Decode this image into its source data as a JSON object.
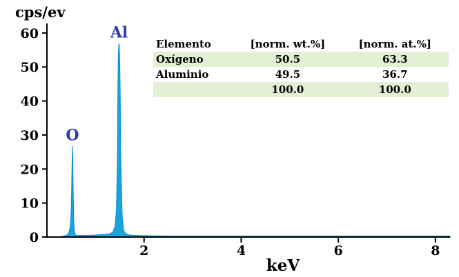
{
  "chart_data": {
    "type": "line",
    "ylabel": "cps/ev",
    "xlabel": "keV",
    "xlim": [
      0,
      8.3
    ],
    "ylim": [
      0,
      62
    ],
    "xticks": [
      2,
      4,
      6,
      8
    ],
    "yticks": [
      0,
      10,
      20,
      30,
      40,
      50,
      60
    ],
    "x_tick_labels": [
      "2",
      "4",
      "6",
      "8"
    ],
    "y_tick_labels": [
      "0",
      "10",
      "20",
      "30",
      "40",
      "50",
      "60"
    ],
    "spectrum_color": "#1aa3dd",
    "peaks": [
      {
        "label": "O",
        "energy": 0.525,
        "height": 26.8
      },
      {
        "label": "Al",
        "energy": 1.486,
        "height": 57.0
      }
    ],
    "spectrum": {
      "x": [
        0.3,
        0.35,
        0.4,
        0.44,
        0.47,
        0.49,
        0.5,
        0.51,
        0.52,
        0.525,
        0.53,
        0.54,
        0.55,
        0.56,
        0.58,
        0.6,
        0.65,
        0.7,
        0.8,
        0.9,
        1.0,
        1.1,
        1.2,
        1.3,
        1.36,
        1.4,
        1.43,
        1.45,
        1.46,
        1.47,
        1.48,
        1.486,
        1.49,
        1.5,
        1.51,
        1.52,
        1.53,
        1.55,
        1.58,
        1.62,
        1.7,
        1.8,
        2.0,
        2.5,
        3.0,
        4.0,
        5.0,
        6.0,
        7.0,
        8.0,
        8.3
      ],
      "y": [
        0.2,
        0.3,
        0.5,
        1.0,
        2.5,
        5.0,
        9.0,
        15.5,
        24.0,
        26.8,
        24.5,
        15.0,
        6.0,
        2.5,
        0.8,
        0.5,
        0.5,
        0.5,
        0.5,
        0.5,
        0.6,
        0.7,
        0.8,
        1.0,
        1.5,
        3.0,
        8.0,
        22.0,
        42.0,
        54.0,
        56.5,
        57.0,
        56.0,
        52.0,
        42.0,
        25.0,
        17.5,
        6.0,
        2.0,
        1.0,
        0.6,
        0.5,
        0.4,
        0.3,
        0.3,
        0.3,
        0.3,
        0.3,
        0.3,
        0.3,
        0.3
      ]
    }
  },
  "table": {
    "headers": [
      "Elemento",
      "[norm. wt.%]",
      "[norm. at.%]"
    ],
    "rows": [
      [
        "Oxígeno",
        "50.5",
        "63.3"
      ],
      [
        "Aluminio",
        "49.5",
        "36.7"
      ],
      [
        "",
        "100.0",
        "100.0"
      ]
    ]
  }
}
